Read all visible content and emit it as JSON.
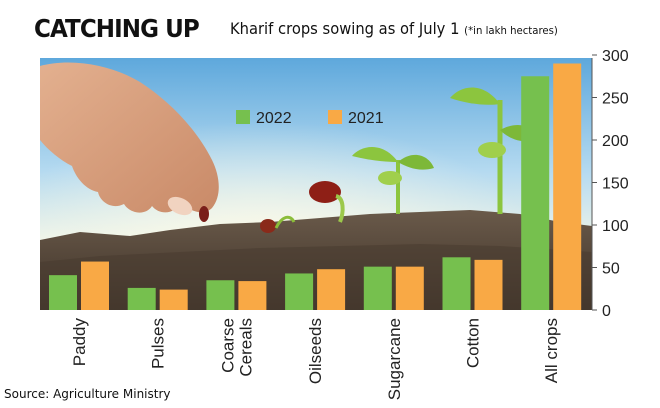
{
  "header": {
    "headline": "CATCHING UP",
    "subtitle": "Kharif crops sowing as of July 1",
    "unit_note": "(*in lakh hectares)"
  },
  "source": "Source: Agriculture Ministry",
  "colors": {
    "series_2022": "#76c04e",
    "series_2021": "#f9a945"
  },
  "chart_data": {
    "type": "bar",
    "title": "Kharif crops sowing as of July 1",
    "ylabel": "",
    "xlabel": "",
    "categories": [
      "Paddy",
      "Pulses",
      "Coarse Cereals",
      "Oilseeds",
      "Sugarcane",
      "Cotton",
      "All crops"
    ],
    "category_lines": [
      [
        "Paddy"
      ],
      [
        "Pulses"
      ],
      [
        "Coarse",
        "Cereals"
      ],
      [
        "Oilseeds"
      ],
      [
        "Sugarcane"
      ],
      [
        "Cotton"
      ],
      [
        "All crops"
      ]
    ],
    "series": [
      {
        "name": "2022",
        "color": "#76c04e",
        "values": [
          41,
          26,
          35,
          43,
          51,
          62,
          275
        ]
      },
      {
        "name": "2021",
        "color": "#f9a945",
        "values": [
          57,
          24,
          34,
          48,
          51,
          59,
          290
        ]
      }
    ],
    "ylim": [
      0,
      300
    ],
    "yticks": [
      0,
      50,
      100,
      150,
      200,
      250,
      300
    ],
    "y_axis_side": "right",
    "legend_position": "top-left",
    "grid": false
  }
}
